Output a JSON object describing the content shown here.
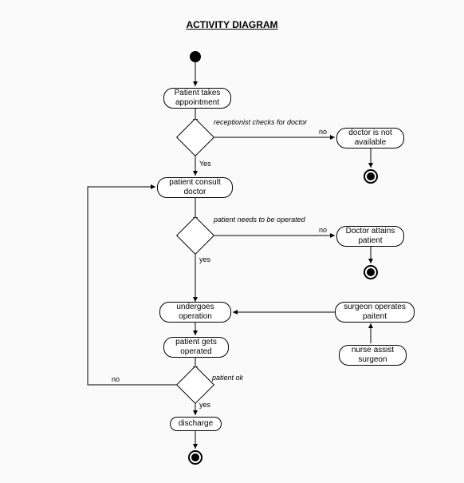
{
  "title": "ACTIVITY DIAGRAM",
  "nodes": {
    "start": {
      "type": "start"
    },
    "appointment": {
      "type": "activity",
      "label": "Patient takes\nappointment"
    },
    "dec1": {
      "type": "decision",
      "label": "receptionist checks for doctor",
      "yes": "Yes",
      "no": "no"
    },
    "not_available": {
      "type": "activity",
      "label": "doctor is not\navailable"
    },
    "end1": {
      "type": "end"
    },
    "consult": {
      "type": "activity",
      "label": "patient consult\ndoctor"
    },
    "dec2": {
      "type": "decision",
      "label": "patient needs to be operated",
      "yes": "yes",
      "no": "no"
    },
    "attains": {
      "type": "activity",
      "label": "Doctor attains\npatient"
    },
    "end2": {
      "type": "end"
    },
    "undergoes": {
      "type": "activity",
      "label": "undergoes\noperation"
    },
    "surgeon": {
      "type": "activity",
      "label": "surgeon operates\npaitent"
    },
    "nurse": {
      "type": "activity",
      "label": "nurse assist\nsurgeon"
    },
    "operated": {
      "type": "activity",
      "label": "patient gets\noperated"
    },
    "dec3": {
      "type": "decision",
      "label": "patient ok",
      "yes": "yes",
      "no": "no"
    },
    "discharge": {
      "type": "activity",
      "label": "discharge"
    },
    "end3": {
      "type": "end"
    }
  },
  "colors": {
    "bg": "#fafafa",
    "stroke": "#000000"
  }
}
